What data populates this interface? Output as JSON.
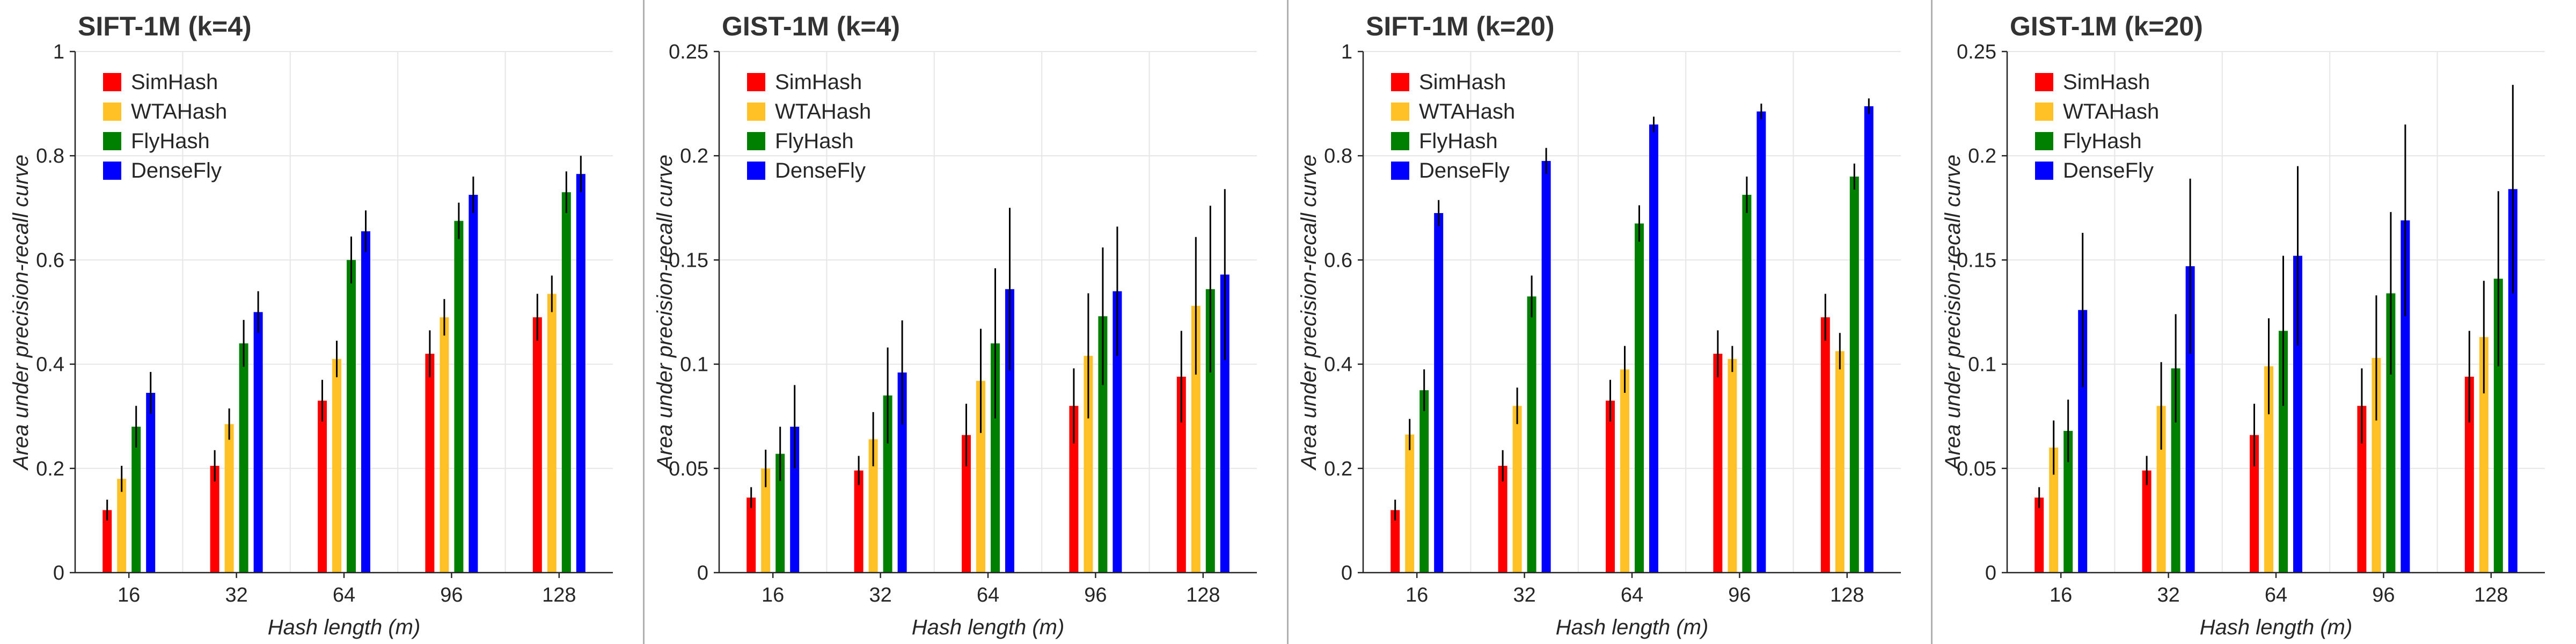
{
  "colors": {
    "SimHash": "#ff0000",
    "WTAHash": "#ffc125",
    "FlyHash": "#008000",
    "DenseFly": "#0000ff",
    "error_bar": "#000000",
    "grid": "#e6e6e6",
    "divider": "#b0b0b0"
  },
  "chart_data": [
    {
      "type": "bar",
      "title": "SIFT-1M (k=4)",
      "xlabel": "Hash length (m)",
      "ylabel": "Area under precision-recall curve",
      "ylim": [
        0,
        1
      ],
      "yticks": [
        "0",
        "0.2",
        "0.4",
        "0.6",
        "0.8",
        "1"
      ],
      "ytick_values": [
        0,
        0.2,
        0.4,
        0.6,
        0.8,
        1
      ],
      "grid": true,
      "legend_position": "top-left",
      "categories": [
        "16",
        "32",
        "64",
        "96",
        "128"
      ],
      "series": [
        {
          "name": "SimHash",
          "values": [
            0.12,
            0.205,
            0.33,
            0.42,
            0.49
          ],
          "errors": [
            0.02,
            0.03,
            0.04,
            0.045,
            0.045
          ]
        },
        {
          "name": "WTAHash",
          "values": [
            0.18,
            0.285,
            0.41,
            0.49,
            0.535
          ],
          "errors": [
            0.025,
            0.03,
            0.035,
            0.035,
            0.035
          ]
        },
        {
          "name": "FlyHash",
          "values": [
            0.28,
            0.44,
            0.6,
            0.675,
            0.73
          ],
          "errors": [
            0.04,
            0.045,
            0.045,
            0.035,
            0.04
          ]
        },
        {
          "name": "DenseFly",
          "values": [
            0.345,
            0.5,
            0.655,
            0.725,
            0.765
          ],
          "errors": [
            0.04,
            0.04,
            0.04,
            0.035,
            0.035
          ]
        }
      ]
    },
    {
      "type": "bar",
      "title": "GIST-1M (k=4)",
      "xlabel": "Hash length (m)",
      "ylabel": "Area under precision-recall curve",
      "ylim": [
        0,
        0.25
      ],
      "yticks": [
        "0",
        "0.05",
        "0.1",
        "0.15",
        "0.2",
        "0.25"
      ],
      "ytick_values": [
        0,
        0.05,
        0.1,
        0.15,
        0.2,
        0.25
      ],
      "grid": true,
      "legend_position": "top-left",
      "categories": [
        "16",
        "32",
        "64",
        "96",
        "128"
      ],
      "series": [
        {
          "name": "SimHash",
          "values": [
            0.036,
            0.049,
            0.066,
            0.08,
            0.094
          ],
          "errors": [
            0.005,
            0.007,
            0.015,
            0.018,
            0.022
          ]
        },
        {
          "name": "WTAHash",
          "values": [
            0.05,
            0.064,
            0.092,
            0.104,
            0.128
          ],
          "errors": [
            0.009,
            0.013,
            0.025,
            0.03,
            0.033
          ]
        },
        {
          "name": "FlyHash",
          "values": [
            0.057,
            0.085,
            0.11,
            0.123,
            0.136
          ],
          "errors": [
            0.013,
            0.023,
            0.036,
            0.033,
            0.04
          ]
        },
        {
          "name": "DenseFly",
          "values": [
            0.07,
            0.096,
            0.136,
            0.135,
            0.143
          ],
          "errors": [
            0.02,
            0.025,
            0.039,
            0.031,
            0.041
          ]
        }
      ]
    },
    {
      "type": "bar",
      "title": "SIFT-1M (k=20)",
      "xlabel": "Hash length (m)",
      "ylabel": "Area under precision-recall curve",
      "ylim": [
        0,
        1
      ],
      "yticks": [
        "0",
        "0.2",
        "0.4",
        "0.6",
        "0.8",
        "1"
      ],
      "ytick_values": [
        0,
        0.2,
        0.4,
        0.6,
        0.8,
        1
      ],
      "grid": true,
      "legend_position": "top-left",
      "categories": [
        "16",
        "32",
        "64",
        "96",
        "128"
      ],
      "series": [
        {
          "name": "SimHash",
          "values": [
            0.12,
            0.205,
            0.33,
            0.42,
            0.49
          ],
          "errors": [
            0.02,
            0.03,
            0.04,
            0.045,
            0.045
          ]
        },
        {
          "name": "WTAHash",
          "values": [
            0.265,
            0.32,
            0.39,
            0.41,
            0.425
          ],
          "errors": [
            0.03,
            0.035,
            0.045,
            0.025,
            0.035
          ]
        },
        {
          "name": "FlyHash",
          "values": [
            0.35,
            0.53,
            0.67,
            0.725,
            0.76
          ],
          "errors": [
            0.04,
            0.04,
            0.035,
            0.035,
            0.025
          ]
        },
        {
          "name": "DenseFly",
          "values": [
            0.69,
            0.79,
            0.86,
            0.885,
            0.895
          ],
          "errors": [
            0.025,
            0.025,
            0.015,
            0.015,
            0.015
          ]
        }
      ]
    },
    {
      "type": "bar",
      "title": "GIST-1M (k=20)",
      "xlabel": "Hash length (m)",
      "ylabel": "Area under precision-recall curve",
      "ylim": [
        0,
        0.25
      ],
      "yticks": [
        "0",
        "0.05",
        "0.1",
        "0.15",
        "0.2",
        "0.25"
      ],
      "ytick_values": [
        0,
        0.05,
        0.1,
        0.15,
        0.2,
        0.25
      ],
      "grid": true,
      "legend_position": "top-left",
      "categories": [
        "16",
        "32",
        "64",
        "96",
        "128"
      ],
      "series": [
        {
          "name": "SimHash",
          "values": [
            0.036,
            0.049,
            0.066,
            0.08,
            0.094
          ],
          "errors": [
            0.005,
            0.007,
            0.015,
            0.018,
            0.022
          ]
        },
        {
          "name": "WTAHash",
          "values": [
            0.06,
            0.08,
            0.099,
            0.103,
            0.113
          ],
          "errors": [
            0.013,
            0.021,
            0.023,
            0.03,
            0.027
          ]
        },
        {
          "name": "FlyHash",
          "values": [
            0.068,
            0.098,
            0.116,
            0.134,
            0.141
          ],
          "errors": [
            0.015,
            0.026,
            0.036,
            0.039,
            0.042
          ]
        },
        {
          "name": "DenseFly",
          "values": [
            0.126,
            0.147,
            0.152,
            0.169,
            0.184
          ],
          "errors": [
            0.037,
            0.042,
            0.043,
            0.046,
            0.05
          ]
        }
      ]
    }
  ]
}
